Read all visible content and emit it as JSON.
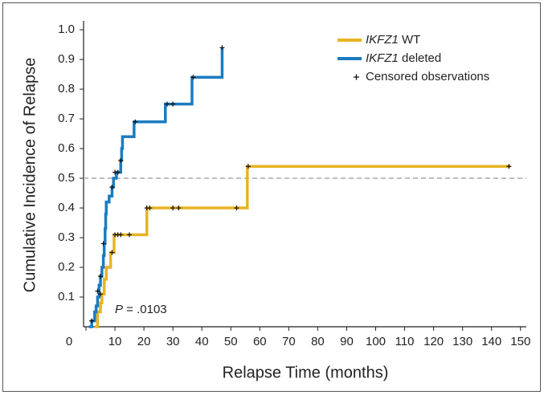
{
  "chart_data": {
    "type": "step",
    "x_label": "Relapse Time (months)",
    "y_label": "Cumulative Incidence of Relapse",
    "annotation": "P = .0103",
    "xlim": [
      0,
      152
    ],
    "ylim": [
      0,
      1.03
    ],
    "xticks": [
      0,
      10,
      20,
      30,
      40,
      50,
      60,
      70,
      80,
      90,
      100,
      110,
      120,
      130,
      140,
      150
    ],
    "yticks": [
      0.1,
      0.2,
      0.3,
      0.4,
      0.5,
      0.6,
      0.7,
      0.8,
      0.9,
      {
        "value": 1,
        "label": "1.0"
      }
    ],
    "hline": 0.5,
    "series": [
      {
        "name": "IKFZ1 WT",
        "color": "#e6b422",
        "x": [
          3,
          4,
          5,
          5.5,
          6.3,
          7,
          8.5,
          9.7,
          21,
          55.7,
          146.5
        ],
        "values": [
          0,
          0.05,
          0.08,
          0.11,
          0.16,
          0.2,
          0.25,
          0.31,
          0.4,
          0.54,
          0.54
        ]
      },
      {
        "name": "IKFZ1 deleted",
        "color": "#1b7cc0",
        "x": [
          1,
          2,
          3,
          3.5,
          4,
          4.5,
          5,
          5.5,
          6,
          6.3,
          6.6,
          6.8,
          7,
          8,
          9,
          9.5,
          10.5,
          12,
          12.3,
          12.6,
          16.6,
          27.4,
          36.6,
          47
        ],
        "values": [
          0,
          0.02,
          0.05,
          0.07,
          0.1,
          0.14,
          0.17,
          0.2,
          0.24,
          0.28,
          0.33,
          0.38,
          0.42,
          0.44,
          0.47,
          0.5,
          0.52,
          0.56,
          0.6,
          0.64,
          0.69,
          0.75,
          0.84,
          0.94
        ]
      },
      {
        "name": "Censored observations",
        "color": "#111",
        "marker": "+",
        "x": [
          2,
          4,
          5,
          6,
          9,
          10,
          11,
          12,
          17,
          28,
          30,
          37,
          47,
          5,
          9,
          10,
          11,
          12,
          15,
          21,
          22,
          30,
          32,
          52,
          56,
          146
        ],
        "values": [
          0.02,
          0.12,
          0.17,
          0.28,
          0.47,
          0.52,
          0.52,
          0.56,
          0.69,
          0.75,
          0.75,
          0.84,
          0.94,
          0.11,
          0.25,
          0.31,
          0.31,
          0.31,
          0.31,
          0.4,
          0.4,
          0.4,
          0.4,
          0.4,
          0.54,
          0.54
        ]
      }
    ]
  }
}
